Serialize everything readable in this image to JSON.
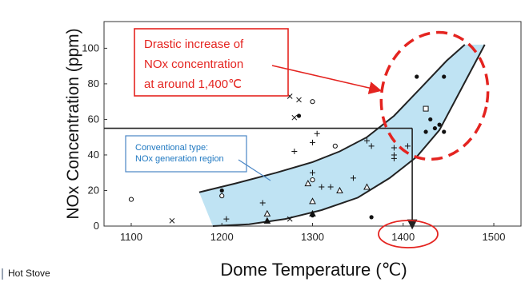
{
  "chart_data": {
    "type": "scatter",
    "xlabel": "Dome Temperature (℃)",
    "ylabel": "NOx Concentration (ppm)",
    "xlim": [
      1070,
      1530
    ],
    "ylim": [
      0,
      115
    ],
    "x_ticks": [
      "1100",
      "1200",
      "1300",
      "1400",
      "1500"
    ],
    "y_ticks": [
      "0",
      "20",
      "40",
      "60",
      "80",
      "100"
    ],
    "grid": false,
    "series": [
      {
        "marker": "circle-filled",
        "points": [
          [
            1200,
            20
          ],
          [
            1300,
            6
          ],
          [
            1285,
            62
          ],
          [
            1365,
            5
          ],
          [
            1415,
            84
          ],
          [
            1445,
            84
          ],
          [
            1425,
            53
          ],
          [
            1430,
            60
          ],
          [
            1435,
            55
          ],
          [
            1440,
            57
          ],
          [
            1445,
            53
          ]
        ]
      },
      {
        "marker": "circle-open",
        "points": [
          [
            1100,
            15
          ],
          [
            1300,
            70
          ],
          [
            1300,
            26
          ],
          [
            1325,
            45
          ],
          [
            1200,
            17
          ]
        ]
      },
      {
        "marker": "triangle-open",
        "points": [
          [
            1250,
            7
          ],
          [
            1295,
            24
          ],
          [
            1300,
            14
          ],
          [
            1330,
            20
          ],
          [
            1360,
            22
          ]
        ]
      },
      {
        "marker": "triangle-filled",
        "points": [
          [
            1250,
            3
          ],
          [
            1300,
            7
          ]
        ]
      },
      {
        "marker": "plus",
        "points": [
          [
            1205,
            4
          ],
          [
            1245,
            13
          ],
          [
            1280,
            42
          ],
          [
            1305,
            52
          ],
          [
            1310,
            22
          ],
          [
            1320,
            22
          ],
          [
            1300,
            30
          ],
          [
            1345,
            27
          ],
          [
            1390,
            44
          ],
          [
            1390,
            40
          ],
          [
            1390,
            38
          ],
          [
            1405,
            45
          ],
          [
            1360,
            48
          ],
          [
            1365,
            45
          ],
          [
            1300,
            47
          ]
        ]
      },
      {
        "marker": "cross",
        "points": [
          [
            1145,
            3
          ],
          [
            1275,
            4
          ],
          [
            1275,
            73
          ],
          [
            1285,
            71
          ],
          [
            1280,
            61
          ]
        ]
      },
      {
        "marker": "square-open",
        "points": [
          [
            1425,
            66
          ]
        ]
      }
    ],
    "region": {
      "label": "Conventional type:\nNOx generation region",
      "upper": [
        [
          1175,
          19
        ],
        [
          1215,
          24
        ],
        [
          1260,
          30
        ],
        [
          1300,
          36
        ],
        [
          1330,
          42
        ],
        [
          1360,
          50
        ],
        [
          1390,
          62
        ],
        [
          1420,
          78
        ],
        [
          1448,
          93
        ],
        [
          1468,
          102
        ]
      ],
      "lower": [
        [
          1190,
          0
        ],
        [
          1230,
          1
        ],
        [
          1270,
          4
        ],
        [
          1310,
          9
        ],
        [
          1350,
          16
        ],
        [
          1385,
          27
        ],
        [
          1415,
          39
        ],
        [
          1440,
          54
        ],
        [
          1465,
          78
        ],
        [
          1490,
          102
        ]
      ]
    },
    "reference_lines": [
      {
        "type": "horizontal",
        "y": 55,
        "x_from": 1070,
        "x_to": 1410
      },
      {
        "type": "vertical",
        "x": 1410,
        "y_from": 55,
        "y_to": 0
      }
    ],
    "annotations": {
      "main_callout": "Drastic increase  of\nNOx concentration\nat around 1,400℃",
      "highlight_tick": "1400"
    },
    "colors": {
      "region_fill": "#bfe3f3",
      "highlight": "#e42420",
      "region_label": "#1f78c1",
      "frame": "#333333"
    }
  },
  "footer": {
    "label": "Hot Stove"
  }
}
